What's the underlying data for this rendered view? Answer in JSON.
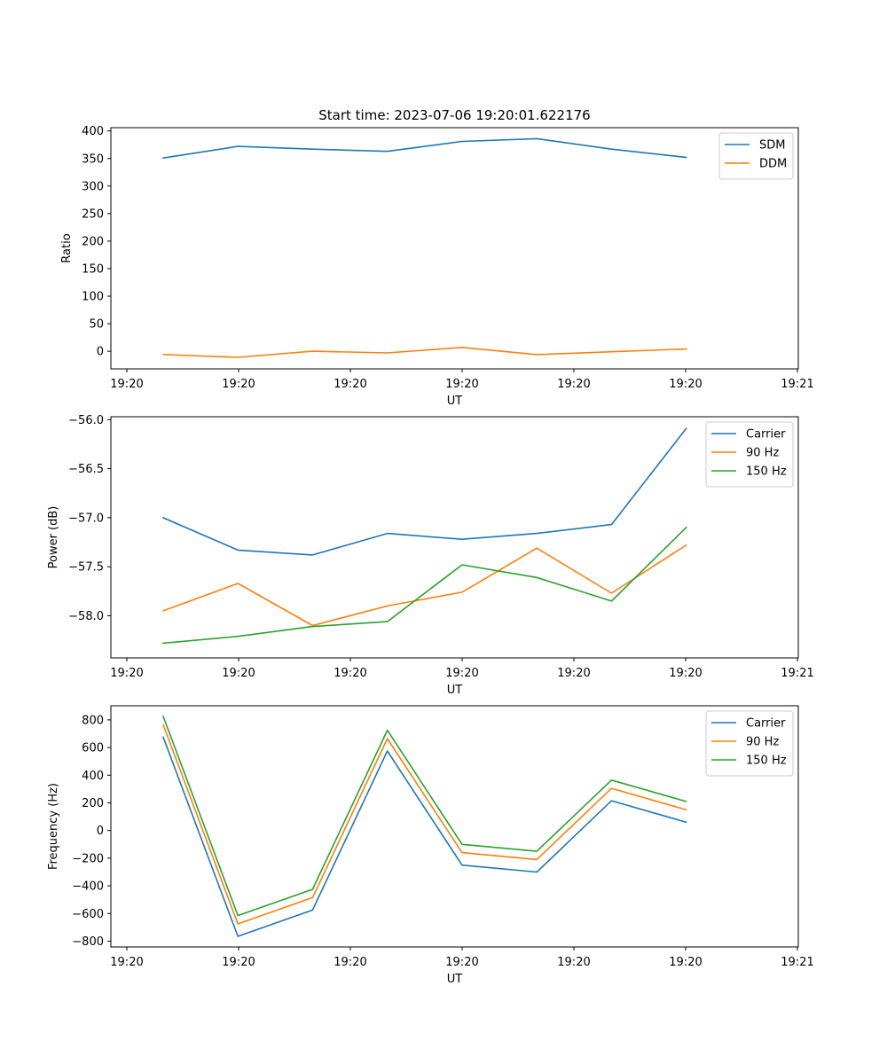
{
  "chart_data": [
    {
      "type": "line",
      "title": "Start time: 2023-07-06 19:20:01.622176",
      "xlabel": "UT",
      "ylabel": "Ratio",
      "x_tick_labels": [
        "19:20",
        "19:20",
        "19:20",
        "19:20",
        "19:20",
        "19:20",
        "19:21"
      ],
      "x": [
        1,
        2,
        3,
        4,
        5,
        6,
        7,
        8
      ],
      "xlim": [
        0.3,
        9.5
      ],
      "ylim": [
        -32,
        406
      ],
      "y_ticks": [
        0,
        50,
        100,
        150,
        200,
        250,
        300,
        350,
        400
      ],
      "y_tick_labels": [
        "0",
        "50",
        "100",
        "150",
        "200",
        "250",
        "300",
        "350",
        "400"
      ],
      "legend_position": "top-right",
      "series": [
        {
          "name": "SDM",
          "color": "#1f77b4",
          "values": [
            351,
            372,
            367,
            363,
            381,
            386,
            367,
            352
          ]
        },
        {
          "name": "DDM",
          "color": "#ff7f0e",
          "values": [
            -6,
            -11,
            0,
            -3,
            7,
            -6,
            -1,
            4
          ]
        }
      ]
    },
    {
      "type": "line",
      "title": "",
      "xlabel": "UT",
      "ylabel": "Power (dB)",
      "x_tick_labels": [
        "19:20",
        "19:20",
        "19:20",
        "19:20",
        "19:20",
        "19:20",
        "19:21"
      ],
      "x": [
        1,
        2,
        3,
        4,
        5,
        6,
        7,
        8
      ],
      "xlim": [
        0.3,
        9.5
      ],
      "ylim": [
        -58.43,
        -55.97
      ],
      "y_ticks": [
        -58.0,
        -57.5,
        -57.0,
        -56.5,
        -56.0
      ],
      "y_tick_labels": [
        "−58.0",
        "−57.5",
        "−57.0",
        "−56.5",
        "−56.0"
      ],
      "legend_position": "top-right",
      "series": [
        {
          "name": "Carrier",
          "color": "#1f77b4",
          "values": [
            -57.0,
            -57.33,
            -57.38,
            -57.16,
            -57.22,
            -57.16,
            -57.07,
            -56.09
          ]
        },
        {
          "name": "90 Hz",
          "color": "#ff7f0e",
          "values": [
            -57.95,
            -57.67,
            -58.1,
            -57.9,
            -57.76,
            -57.31,
            -57.77,
            -57.28
          ]
        },
        {
          "name": "150 Hz",
          "color": "#2ca02c",
          "values": [
            -58.28,
            -58.21,
            -58.11,
            -58.06,
            -57.48,
            -57.61,
            -57.85,
            -57.1
          ]
        }
      ]
    },
    {
      "type": "line",
      "title": "",
      "xlabel": "UT",
      "ylabel": "Frequency (Hz)",
      "x_tick_labels": [
        "19:20",
        "19:20",
        "19:20",
        "19:20",
        "19:20",
        "19:20",
        "19:21"
      ],
      "x": [
        1,
        2,
        3,
        4,
        5,
        6,
        7,
        8
      ],
      "xlim": [
        0.3,
        9.5
      ],
      "ylim": [
        -842,
        902
      ],
      "y_ticks": [
        -800,
        -600,
        -400,
        -200,
        0,
        200,
        400,
        600,
        800
      ],
      "y_tick_labels": [
        "−800",
        "−600",
        "−400",
        "−200",
        "0",
        "200",
        "400",
        "600",
        "800"
      ],
      "legend_position": "top-right",
      "series": [
        {
          "name": "Carrier",
          "color": "#1f77b4",
          "values": [
            675,
            -765,
            -575,
            575,
            -250,
            -300,
            215,
            60
          ]
        },
        {
          "name": "90 Hz",
          "color": "#ff7f0e",
          "values": [
            765,
            -675,
            -485,
            665,
            -160,
            -210,
            305,
            150
          ]
        },
        {
          "name": "150 Hz",
          "color": "#2ca02c",
          "values": [
            825,
            -615,
            -425,
            725,
            -100,
            -150,
            365,
            210
          ]
        }
      ]
    }
  ]
}
